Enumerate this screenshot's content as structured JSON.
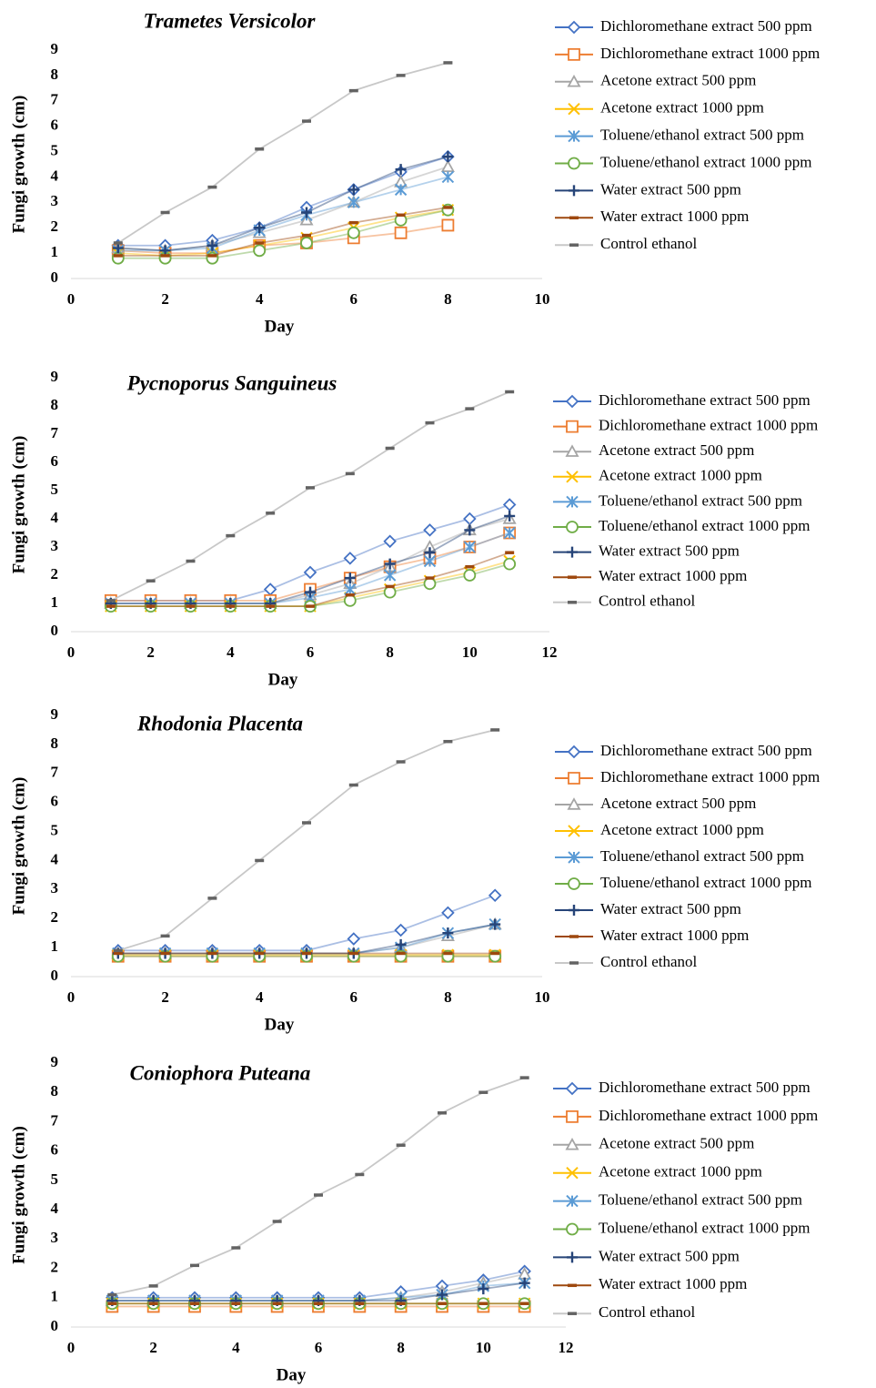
{
  "chart_data": [
    {
      "type": "line",
      "title": "Trametes Versicolor",
      "xlabel": "Day",
      "ylabel": "Fungi growth (cm)",
      "x": [
        1,
        2,
        3,
        4,
        5,
        6,
        7,
        8
      ],
      "xlim": [
        0,
        10
      ],
      "xticks": [
        0,
        2,
        4,
        6,
        8,
        10
      ],
      "ylim": [
        0,
        9
      ],
      "yticks": [
        0,
        1,
        2,
        3,
        4,
        5,
        6,
        7,
        8,
        9
      ],
      "series": [
        {
          "name": "Dichloromethane extract 500 ppm",
          "color": "#4472c4",
          "marker": "diamond",
          "values": [
            1.3,
            1.3,
            1.5,
            2.0,
            2.8,
            3.5,
            4.2,
            4.8
          ]
        },
        {
          "name": "Dichloromethane extract 1000 ppm",
          "color": "#ed7d31",
          "marker": "square",
          "values": [
            1.1,
            1.0,
            1.0,
            1.3,
            1.4,
            1.6,
            1.8,
            2.1
          ]
        },
        {
          "name": "Acetone extract 500 ppm",
          "color": "#a5a5a5",
          "marker": "triangle",
          "values": [
            1.2,
            1.1,
            1.3,
            1.8,
            2.3,
            3.0,
            3.8,
            4.4
          ]
        },
        {
          "name": "Acetone extract 1000 ppm",
          "color": "#ffc000",
          "marker": "x",
          "values": [
            1.0,
            0.9,
            1.0,
            1.3,
            1.6,
            2.0,
            2.4,
            2.7
          ]
        },
        {
          "name": "Toluene/ethanol extract 500 ppm",
          "color": "#5b9bd5",
          "marker": "asterisk",
          "values": [
            1.1,
            1.1,
            1.2,
            1.9,
            2.5,
            3.0,
            3.5,
            4.0
          ]
        },
        {
          "name": "Toluene/ethanol extract 1000 ppm",
          "color": "#70ad47",
          "marker": "circle",
          "values": [
            0.8,
            0.8,
            0.8,
            1.1,
            1.4,
            1.8,
            2.3,
            2.7
          ]
        },
        {
          "name": "Water extract 500 ppm",
          "color": "#264478",
          "marker": "plus",
          "values": [
            1.2,
            1.1,
            1.3,
            2.0,
            2.6,
            3.5,
            4.3,
            4.8
          ]
        },
        {
          "name": "Water extract 1000 ppm",
          "color": "#9e480e",
          "marker": "dash",
          "values": [
            0.9,
            0.9,
            0.9,
            1.4,
            1.7,
            2.2,
            2.5,
            2.8
          ]
        },
        {
          "name": "Control ethanol",
          "color": "#636363",
          "marker": "dash",
          "values": [
            1.4,
            2.6,
            3.6,
            5.1,
            6.2,
            7.4,
            8.0,
            8.5
          ]
        }
      ]
    },
    {
      "type": "line",
      "title": "Pycnoporus Sanguineus",
      "xlabel": "Day",
      "ylabel": "Fungi growth (cm)",
      "x": [
        1,
        2,
        3,
        4,
        5,
        6,
        7,
        8,
        9,
        10,
        11
      ],
      "xlim": [
        0,
        12
      ],
      "xticks": [
        0,
        2,
        4,
        6,
        8,
        10,
        12
      ],
      "ylim": [
        0,
        9
      ],
      "yticks": [
        0,
        1,
        2,
        3,
        4,
        5,
        6,
        7,
        8,
        9
      ],
      "series": [
        {
          "name": "Dichloromethane extract 500 ppm",
          "color": "#4472c4",
          "marker": "diamond",
          "values": [
            1.1,
            1.1,
            1.1,
            1.1,
            1.5,
            2.1,
            2.6,
            3.2,
            3.6,
            4.0,
            4.5
          ]
        },
        {
          "name": "Dichloromethane extract 1000 ppm",
          "color": "#ed7d31",
          "marker": "square",
          "values": [
            1.1,
            1.1,
            1.1,
            1.1,
            1.1,
            1.5,
            1.9,
            2.3,
            2.6,
            3.0,
            3.5
          ]
        },
        {
          "name": "Acetone extract 500 ppm",
          "color": "#a5a5a5",
          "marker": "triangle",
          "values": [
            1.0,
            1.0,
            1.0,
            1.0,
            1.0,
            1.3,
            1.7,
            2.3,
            3.0,
            3.6,
            4.0
          ]
        },
        {
          "name": "Acetone extract 1000 ppm",
          "color": "#ffc000",
          "marker": "x",
          "values": [
            0.9,
            0.9,
            0.9,
            0.9,
            0.9,
            0.9,
            1.2,
            1.5,
            1.8,
            2.1,
            2.5
          ]
        },
        {
          "name": "Toluene/ethanol extract 500 ppm",
          "color": "#5b9bd5",
          "marker": "asterisk",
          "values": [
            1.0,
            1.0,
            1.0,
            1.0,
            1.0,
            1.2,
            1.5,
            2.0,
            2.5,
            3.0,
            3.5
          ]
        },
        {
          "name": "Toluene/ethanol extract 1000 ppm",
          "color": "#70ad47",
          "marker": "circle",
          "values": [
            0.9,
            0.9,
            0.9,
            0.9,
            0.9,
            0.9,
            1.1,
            1.4,
            1.7,
            2.0,
            2.4
          ]
        },
        {
          "name": "Water extract 500 ppm",
          "color": "#264478",
          "marker": "plus",
          "values": [
            1.0,
            1.0,
            1.0,
            1.0,
            1.0,
            1.4,
            1.9,
            2.4,
            2.8,
            3.6,
            4.1
          ]
        },
        {
          "name": "Water extract 1000 ppm",
          "color": "#9e480e",
          "marker": "dash",
          "values": [
            0.9,
            0.9,
            0.9,
            0.9,
            0.9,
            0.9,
            1.3,
            1.6,
            1.9,
            2.3,
            2.8
          ]
        },
        {
          "name": "Control ethanol",
          "color": "#636363",
          "marker": "dash",
          "values": [
            1.1,
            1.8,
            2.5,
            3.4,
            4.2,
            5.1,
            5.6,
            6.5,
            7.4,
            7.9,
            8.5
          ]
        }
      ]
    },
    {
      "type": "line",
      "title": "Rhodonia Placenta",
      "xlabel": "Day",
      "ylabel": "Fungi growth (cm)",
      "x": [
        1,
        2,
        3,
        4,
        5,
        6,
        7,
        8,
        9
      ],
      "xlim": [
        0,
        10
      ],
      "xticks": [
        0,
        2,
        4,
        6,
        8,
        10
      ],
      "ylim": [
        0,
        9
      ],
      "yticks": [
        0,
        1,
        2,
        3,
        4,
        5,
        6,
        7,
        8,
        9
      ],
      "series": [
        {
          "name": "Dichloromethane extract 500 ppm",
          "color": "#4472c4",
          "marker": "diamond",
          "values": [
            0.9,
            0.9,
            0.9,
            0.9,
            0.9,
            1.3,
            1.6,
            2.2,
            2.8
          ]
        },
        {
          "name": "Dichloromethane extract 1000 ppm",
          "color": "#ed7d31",
          "marker": "square",
          "values": [
            0.7,
            0.7,
            0.7,
            0.7,
            0.7,
            0.7,
            0.7,
            0.7,
            0.7
          ]
        },
        {
          "name": "Acetone extract 500 ppm",
          "color": "#a5a5a5",
          "marker": "triangle",
          "values": [
            0.8,
            0.8,
            0.8,
            0.8,
            0.8,
            0.8,
            1.0,
            1.4,
            1.8
          ]
        },
        {
          "name": "Acetone extract 1000 ppm",
          "color": "#ffc000",
          "marker": "x",
          "values": [
            0.75,
            0.75,
            0.75,
            0.75,
            0.75,
            0.75,
            0.75,
            0.75,
            0.75
          ]
        },
        {
          "name": "Toluene/ethanol extract 500 ppm",
          "color": "#5b9bd5",
          "marker": "asterisk",
          "values": [
            0.8,
            0.8,
            0.8,
            0.8,
            0.8,
            0.8,
            1.0,
            1.5,
            1.8
          ]
        },
        {
          "name": "Toluene/ethanol extract 1000 ppm",
          "color": "#70ad47",
          "marker": "circle",
          "values": [
            0.7,
            0.7,
            0.7,
            0.7,
            0.7,
            0.7,
            0.7,
            0.7,
            0.7
          ]
        },
        {
          "name": "Water extract 500 ppm",
          "color": "#264478",
          "marker": "plus",
          "values": [
            0.8,
            0.8,
            0.8,
            0.8,
            0.8,
            0.8,
            1.1,
            1.5,
            1.8
          ]
        },
        {
          "name": "Water extract 1000 ppm",
          "color": "#9e480e",
          "marker": "dash",
          "values": [
            0.8,
            0.8,
            0.8,
            0.8,
            0.8,
            0.8,
            0.8,
            0.8,
            0.8
          ]
        },
        {
          "name": "Control ethanol",
          "color": "#636363",
          "marker": "dash",
          "values": [
            0.9,
            1.4,
            2.7,
            4.0,
            5.3,
            6.6,
            7.4,
            8.1,
            8.5
          ]
        }
      ]
    },
    {
      "type": "line",
      "title": "Coniophora Puteana",
      "xlabel": "Day",
      "ylabel": "Fungi growth (cm)",
      "x": [
        1,
        2,
        3,
        4,
        5,
        6,
        7,
        8,
        9,
        10,
        11
      ],
      "xlim": [
        0,
        12
      ],
      "xticks": [
        0,
        2,
        4,
        6,
        8,
        10,
        12
      ],
      "ylim": [
        0,
        9
      ],
      "yticks": [
        0,
        1,
        2,
        3,
        4,
        5,
        6,
        7,
        8,
        9
      ],
      "series": [
        {
          "name": "Dichloromethane extract 500 ppm",
          "color": "#4472c4",
          "marker": "diamond",
          "values": [
            1.0,
            1.0,
            1.0,
            1.0,
            1.0,
            1.0,
            1.0,
            1.2,
            1.4,
            1.6,
            1.9
          ]
        },
        {
          "name": "Dichloromethane extract 1000 ppm",
          "color": "#ed7d31",
          "marker": "square",
          "values": [
            0.7,
            0.7,
            0.7,
            0.7,
            0.7,
            0.7,
            0.7,
            0.7,
            0.7,
            0.7,
            0.7
          ]
        },
        {
          "name": "Acetone extract 500 ppm",
          "color": "#a5a5a5",
          "marker": "triangle",
          "values": [
            0.9,
            0.9,
            0.9,
            0.9,
            0.9,
            0.9,
            0.9,
            1.0,
            1.2,
            1.5,
            1.8
          ]
        },
        {
          "name": "Acetone extract 1000 ppm",
          "color": "#ffc000",
          "marker": "x",
          "values": [
            0.8,
            0.8,
            0.8,
            0.8,
            0.8,
            0.8,
            0.8,
            0.8,
            0.8,
            0.8,
            0.8
          ]
        },
        {
          "name": "Toluene/ethanol extract 500 ppm",
          "color": "#5b9bd5",
          "marker": "asterisk",
          "values": [
            0.9,
            0.9,
            0.9,
            0.9,
            0.9,
            0.9,
            0.9,
            1.0,
            1.1,
            1.4,
            1.5
          ]
        },
        {
          "name": "Toluene/ethanol extract 1000 ppm",
          "color": "#70ad47",
          "marker": "circle",
          "values": [
            0.8,
            0.8,
            0.8,
            0.8,
            0.8,
            0.8,
            0.8,
            0.8,
            0.8,
            0.8,
            0.8
          ]
        },
        {
          "name": "Water extract 500 ppm",
          "color": "#264478",
          "marker": "plus",
          "values": [
            0.9,
            0.9,
            0.9,
            0.9,
            0.9,
            0.9,
            0.9,
            0.9,
            1.1,
            1.3,
            1.5
          ]
        },
        {
          "name": "Water extract 1000 ppm",
          "color": "#9e480e",
          "marker": "dash",
          "values": [
            0.8,
            0.8,
            0.8,
            0.8,
            0.8,
            0.8,
            0.8,
            0.8,
            0.8,
            0.8,
            0.8
          ]
        },
        {
          "name": "Control ethanol",
          "color": "#636363",
          "marker": "dash",
          "values": [
            1.1,
            1.4,
            2.1,
            2.7,
            3.6,
            4.5,
            5.2,
            6.2,
            7.3,
            8.0,
            8.5
          ]
        }
      ]
    }
  ]
}
